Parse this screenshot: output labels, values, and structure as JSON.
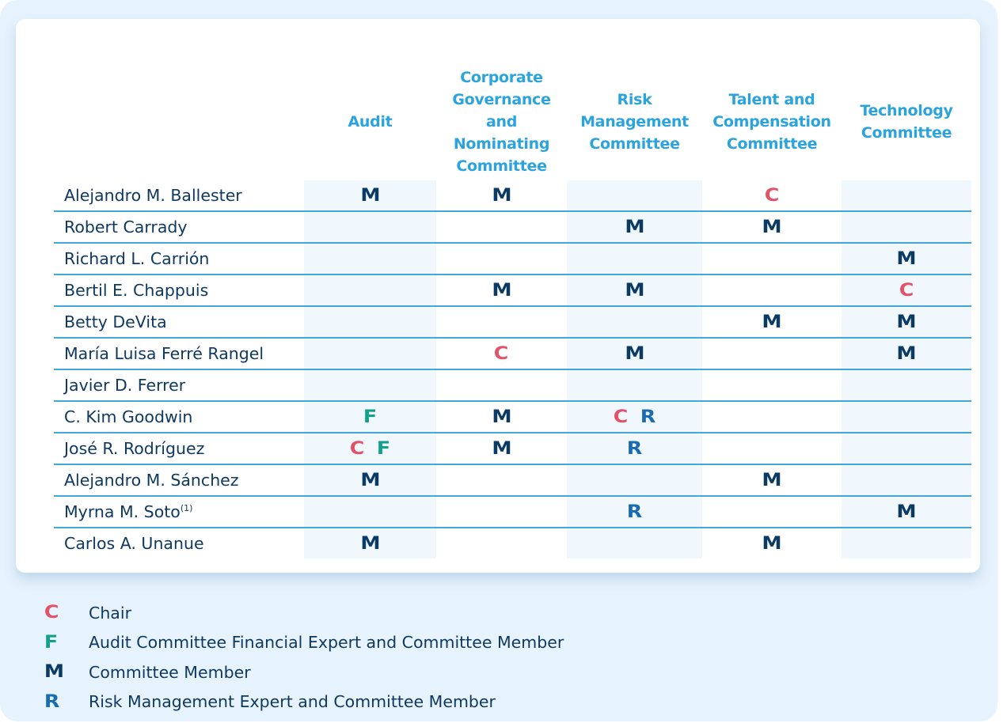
{
  "headers": [
    "Audit",
    "Corporate Governance and Nominating Committee",
    "Risk Management Committee",
    "Talent and Compensation Committee",
    "Technology Committee"
  ],
  "rows": [
    {
      "name": "Alejandro M. Ballester",
      "cells": [
        [
          "M"
        ],
        [
          "M"
        ],
        [],
        [
          "C"
        ],
        []
      ]
    },
    {
      "name": "Robert Carrady",
      "cells": [
        [],
        [],
        [
          "M"
        ],
        [
          "M"
        ],
        []
      ]
    },
    {
      "name": "Richard L. Carrión",
      "cells": [
        [],
        [],
        [],
        [],
        [
          "M"
        ]
      ]
    },
    {
      "name": "Bertil E. Chappuis",
      "cells": [
        [],
        [
          "M"
        ],
        [
          "M"
        ],
        [],
        [
          "C"
        ]
      ]
    },
    {
      "name": "Betty DeVita",
      "cells": [
        [],
        [],
        [],
        [
          "M"
        ],
        [
          "M"
        ]
      ]
    },
    {
      "name": "María Luisa Ferré Rangel",
      "cells": [
        [],
        [
          "C"
        ],
        [
          "M"
        ],
        [],
        [
          "M"
        ]
      ]
    },
    {
      "name": "Javier D. Ferrer",
      "cells": [
        [],
        [],
        [],
        [],
        []
      ]
    },
    {
      "name": "C. Kim Goodwin",
      "cells": [
        [
          "F"
        ],
        [
          "M"
        ],
        [
          "C",
          "R"
        ],
        [],
        []
      ]
    },
    {
      "name": "José R. Rodríguez",
      "cells": [
        [
          "C",
          "F"
        ],
        [
          "M"
        ],
        [
          "R"
        ],
        [],
        []
      ]
    },
    {
      "name": "Alejandro M. Sánchez",
      "cells": [
        [
          "M"
        ],
        [],
        [],
        [
          "M"
        ],
        []
      ]
    },
    {
      "name": "Myrna M. Soto",
      "footnote": "(1)",
      "cells": [
        [],
        [],
        [
          "R"
        ],
        [],
        [
          "M"
        ]
      ]
    },
    {
      "name": "Carlos A. Unanue",
      "cells": [
        [
          "M"
        ],
        [],
        [],
        [
          "M"
        ],
        []
      ]
    }
  ],
  "legend": [
    {
      "symbol": "C",
      "label": "Chair"
    },
    {
      "symbol": "F",
      "label": "Audit Committee Financial Expert and Committee Member"
    },
    {
      "symbol": "M",
      "label": "Committee Member"
    },
    {
      "symbol": "R",
      "label": "Risk Management Expert and Committee Member"
    }
  ],
  "colors": {
    "C": "#e05368",
    "F": "#12a08a",
    "M": "#0b3a63",
    "R": "#1a6cb0",
    "header": "#2ba3dc",
    "rule": "#44a6d6"
  }
}
